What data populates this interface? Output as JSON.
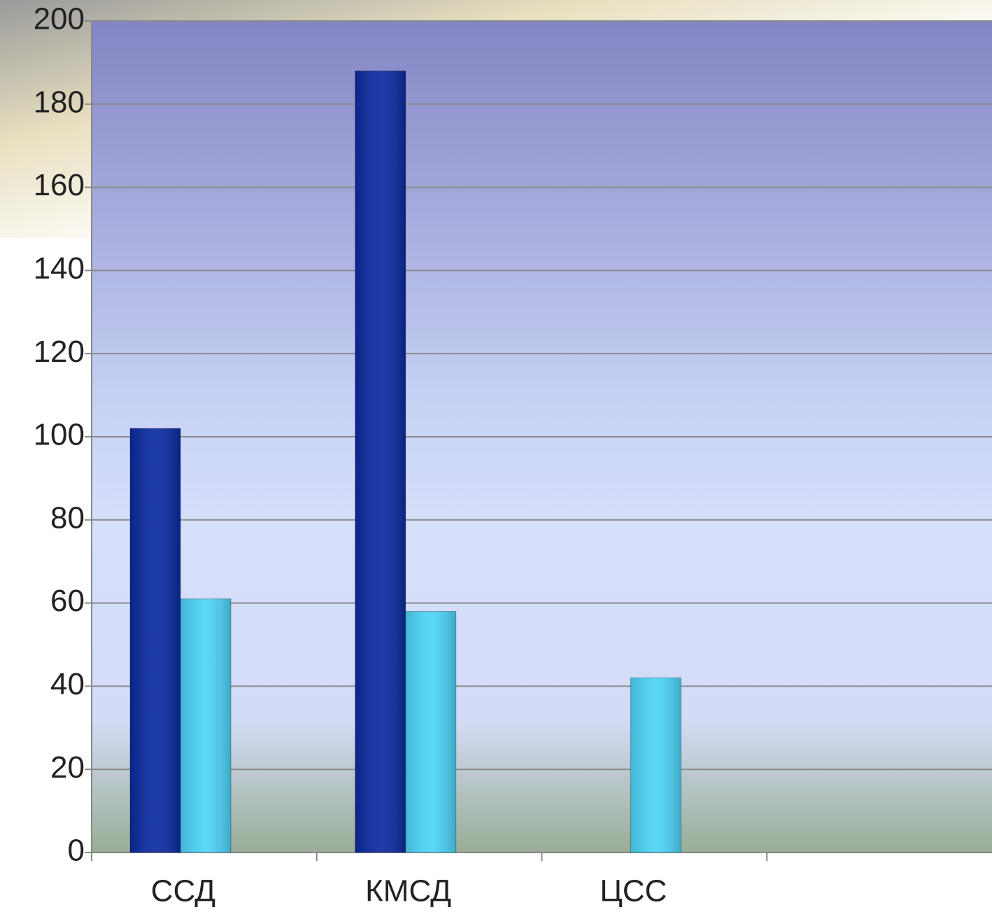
{
  "chart_data": {
    "type": "bar",
    "categories": [
      "ССД",
      "КМСД",
      "ЦСС",
      null
    ],
    "series": [
      {
        "color": "#0a2aa0",
        "values": [
          102,
          188,
          null,
          null
        ]
      },
      {
        "color": "#4cd4f8",
        "values": [
          61,
          58,
          42,
          null
        ]
      }
    ],
    "ylim": [
      0,
      200
    ],
    "yticks": [
      0,
      20,
      40,
      60,
      80,
      100,
      120,
      140,
      160,
      180,
      200
    ],
    "grid": true
  }
}
